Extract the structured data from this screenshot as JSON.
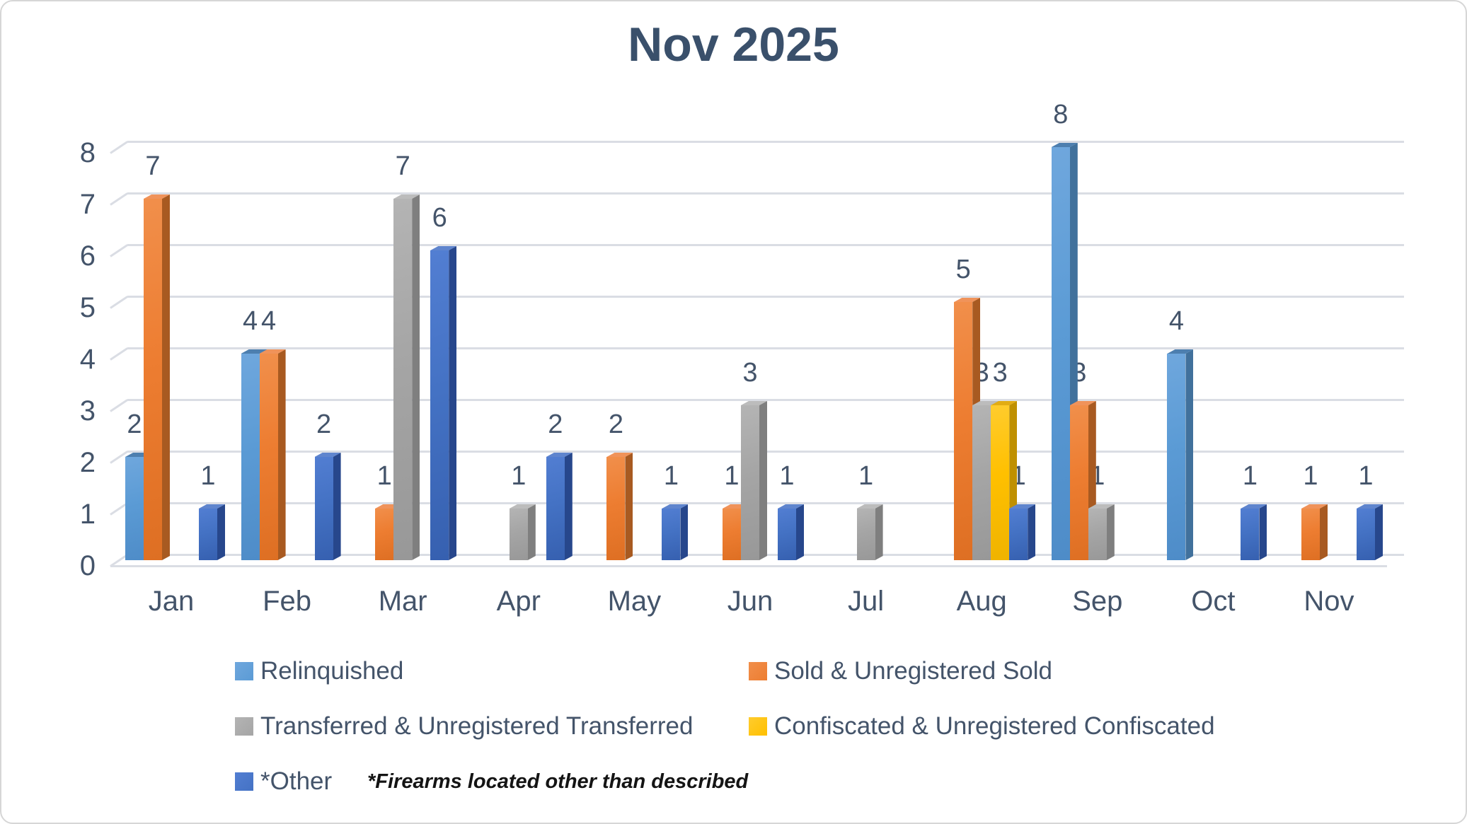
{
  "chart_data": {
    "type": "bar",
    "style": "3d-clustered-column",
    "title": "Nov 2025",
    "footnote": "*Firearms located other than described",
    "categories": [
      "Jan",
      "Feb",
      "Mar",
      "Apr",
      "May",
      "Jun",
      "Jul",
      "Aug",
      "Sep",
      "Oct",
      "Nov"
    ],
    "y_ticks": [
      0,
      1,
      2,
      3,
      4,
      5,
      6,
      7,
      8
    ],
    "ylim": [
      0,
      8
    ],
    "grid": true,
    "legend_position": "bottom",
    "text_color": "#44546A",
    "grid_color": "#DADDE4",
    "series": [
      {
        "name": "Relinquished",
        "color": "#5B9BD5",
        "color_light": "#6FA7DD",
        "color_dark": "#4E8CC8",
        "top_color": "#4D7FAF",
        "side_color": "#41719C",
        "values": [
          2,
          4,
          null,
          null,
          null,
          null,
          null,
          null,
          8,
          4,
          null
        ]
      },
      {
        "name": "Sold & Unregistered Sold",
        "color": "#ED7D31",
        "color_light": "#F18F4B",
        "color_dark": "#DE6F23",
        "top_color": "#F0935A",
        "side_color": "#A85A21",
        "values": [
          7,
          4,
          1,
          null,
          2,
          1,
          null,
          5,
          3,
          null,
          1
        ]
      },
      {
        "name": "Transferred & Unregistered Transferred",
        "color": "#A5A5A5",
        "color_light": "#B4B4B4",
        "color_dark": "#989898",
        "top_color": "#BCBCBC",
        "side_color": "#7F7F7F",
        "values": [
          null,
          null,
          7,
          1,
          null,
          3,
          1,
          3,
          1,
          null,
          null
        ]
      },
      {
        "name": "Confiscated & Unregistered Confiscated",
        "color": "#FFC000",
        "color_light": "#FFCC2E",
        "color_dark": "#EFB300",
        "top_color": "#E2AC14",
        "side_color": "#BF9000",
        "values": [
          null,
          null,
          null,
          null,
          null,
          null,
          null,
          3,
          null,
          null,
          null
        ]
      },
      {
        "name": "*Other",
        "color": "#4472C4",
        "color_light": "#527ED2",
        "color_dark": "#3660B0",
        "top_color": "#5F85CE",
        "side_color": "#27478C",
        "values": [
          1,
          2,
          6,
          2,
          1,
          1,
          null,
          1,
          null,
          1,
          1
        ]
      }
    ]
  }
}
